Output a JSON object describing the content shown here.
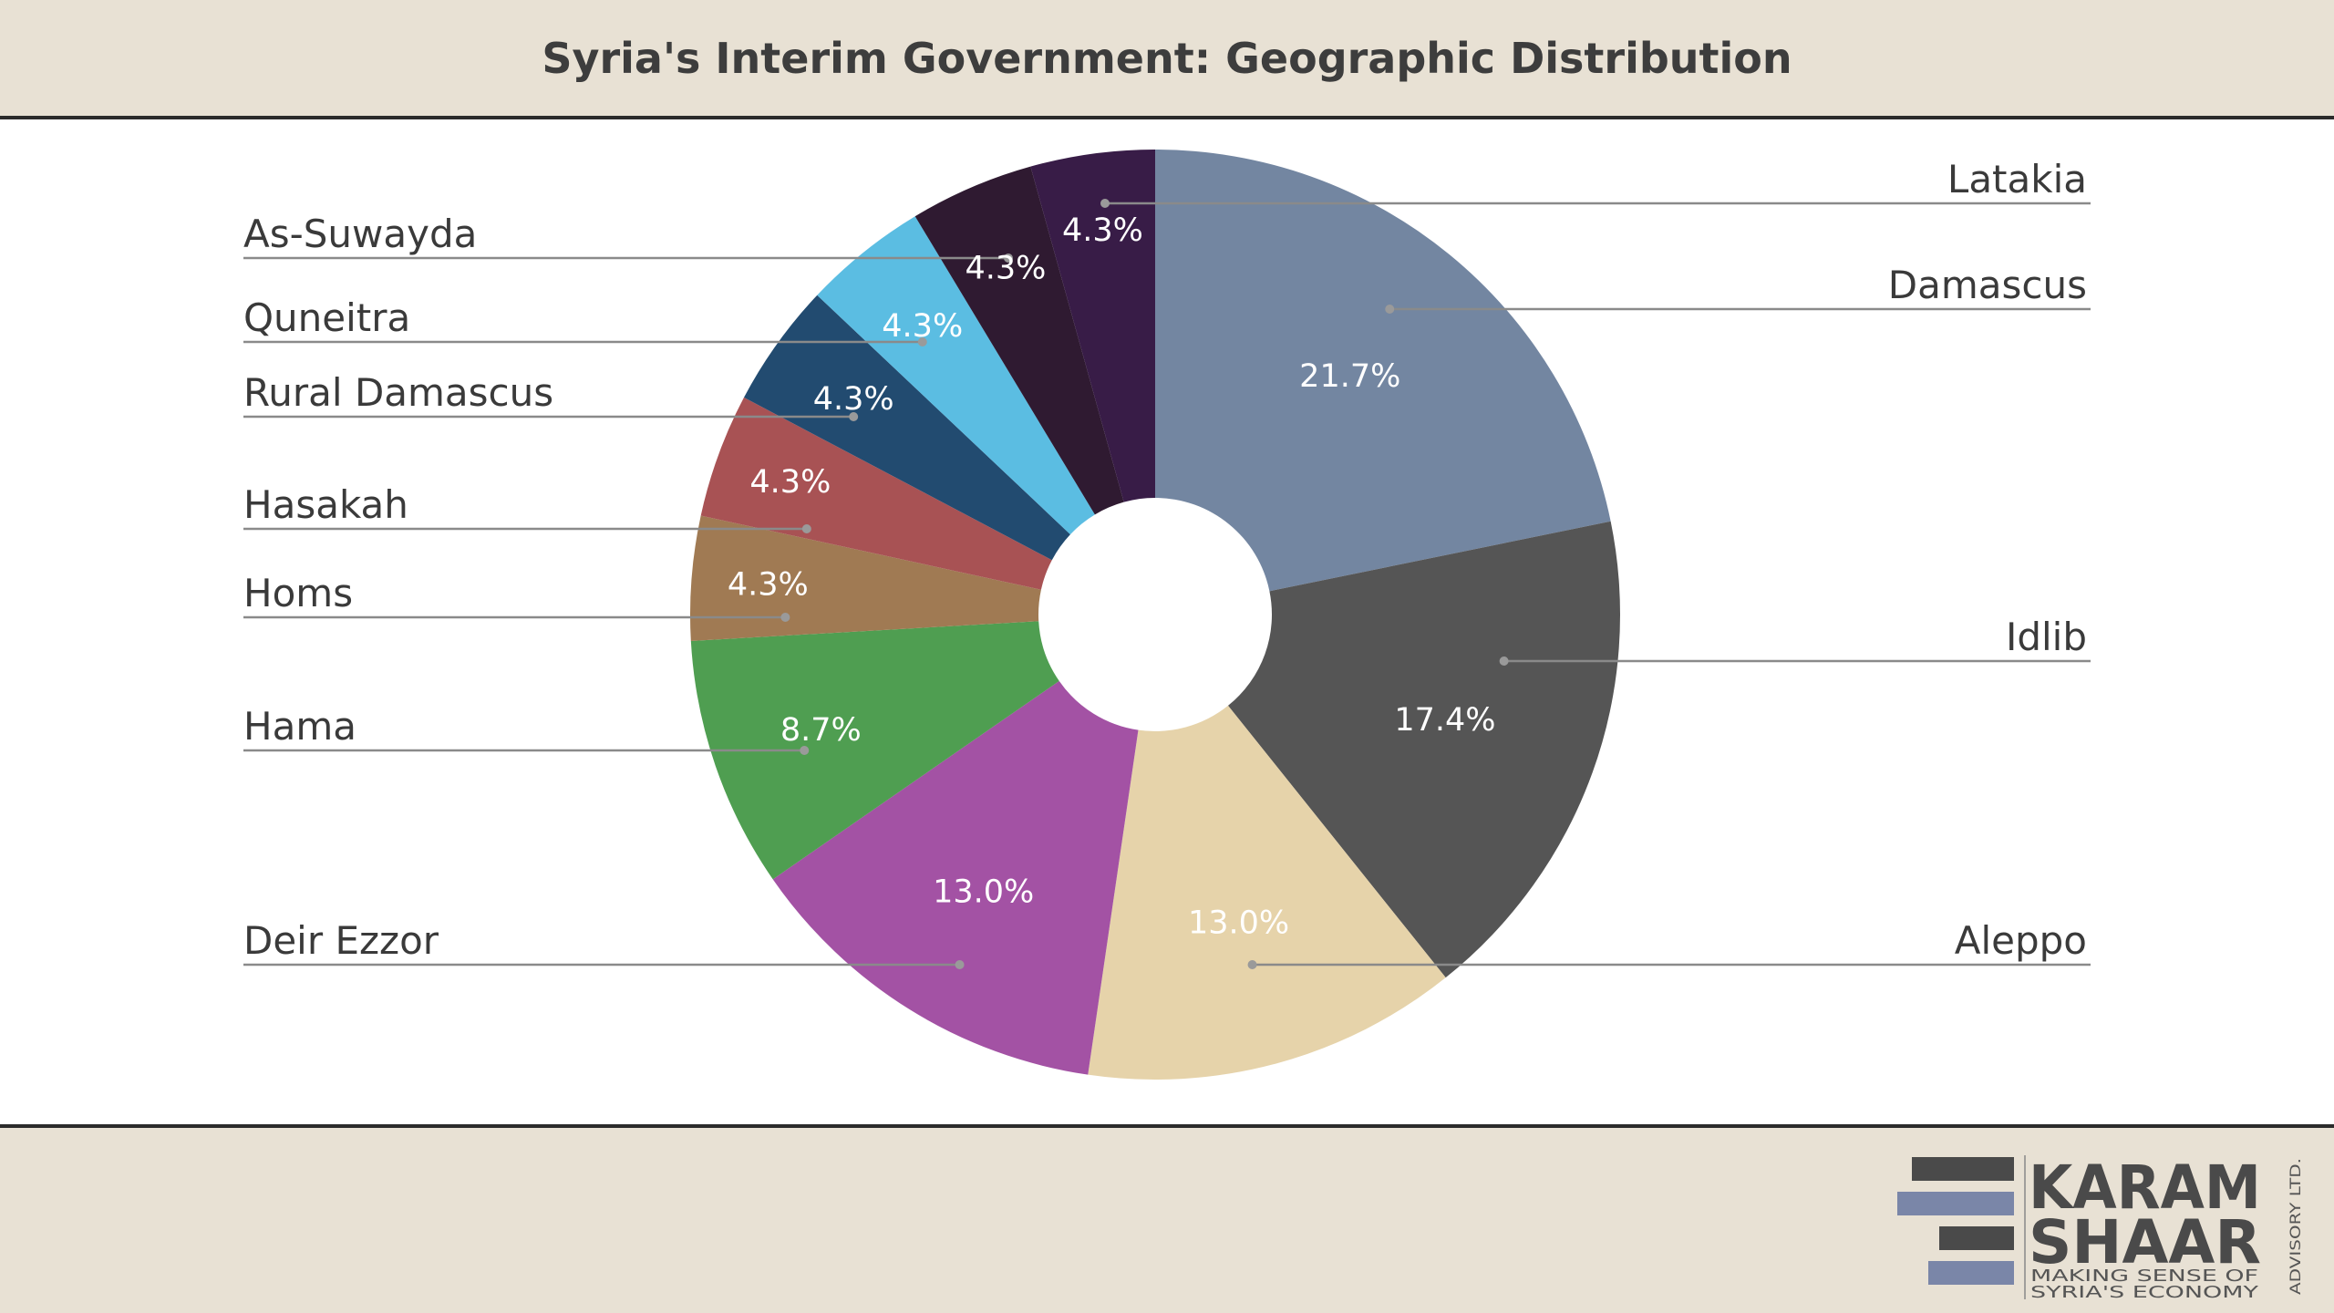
{
  "title": "Syria's Interim Government: Geographic Distribution",
  "chart_data": {
    "type": "pie",
    "donut": true,
    "title": "Syria's Interim Government: Geographic Distribution",
    "start_angle_deg": 0,
    "direction": "clockwise",
    "slices": [
      {
        "label": "Damascus",
        "value": 21.7,
        "display": "21.7%",
        "color": "#7386a1",
        "side": "right"
      },
      {
        "label": "Idlib",
        "value": 17.4,
        "display": "17.4%",
        "color": "#555555",
        "side": "right"
      },
      {
        "label": "Aleppo",
        "value": 13.0,
        "display": "13.0%",
        "color": "#e6d3aa",
        "side": "right"
      },
      {
        "label": "Deir Ezzor",
        "value": 13.0,
        "display": "13.0%",
        "color": "#a352a4",
        "side": "left"
      },
      {
        "label": "Hama",
        "value": 8.7,
        "display": "8.7%",
        "color": "#4f9e51",
        "side": "left"
      },
      {
        "label": "Homs",
        "value": 4.3,
        "display": "4.3%",
        "color": "#a07a53",
        "side": "left"
      },
      {
        "label": "Hasakah",
        "value": 4.3,
        "display": "4.3%",
        "color": "#a85254",
        "side": "left"
      },
      {
        "label": "Rural Damascus",
        "value": 4.3,
        "display": "4.3%",
        "color": "#224b70",
        "side": "left"
      },
      {
        "label": "Quneitra",
        "value": 4.3,
        "display": "4.3%",
        "color": "#5bbde2",
        "side": "left"
      },
      {
        "label": "As-Suwayda",
        "value": 4.3,
        "display": "4.3%",
        "color": "#2f1a31",
        "side": "left"
      },
      {
        "label": "Latakia",
        "value": 4.3,
        "display": "4.3%",
        "color": "#381c47",
        "side": "right"
      }
    ],
    "legend": "none"
  },
  "logo": {
    "line1": "KARAM",
    "line2": "SHAAR",
    "tagline1": "MAKING SENSE OF",
    "tagline2": "SYRIA'S ECONOMY",
    "vertical": "ADVISORY LTD.",
    "bar_colors": [
      "#4a4a4a",
      "#7a86a8"
    ]
  }
}
